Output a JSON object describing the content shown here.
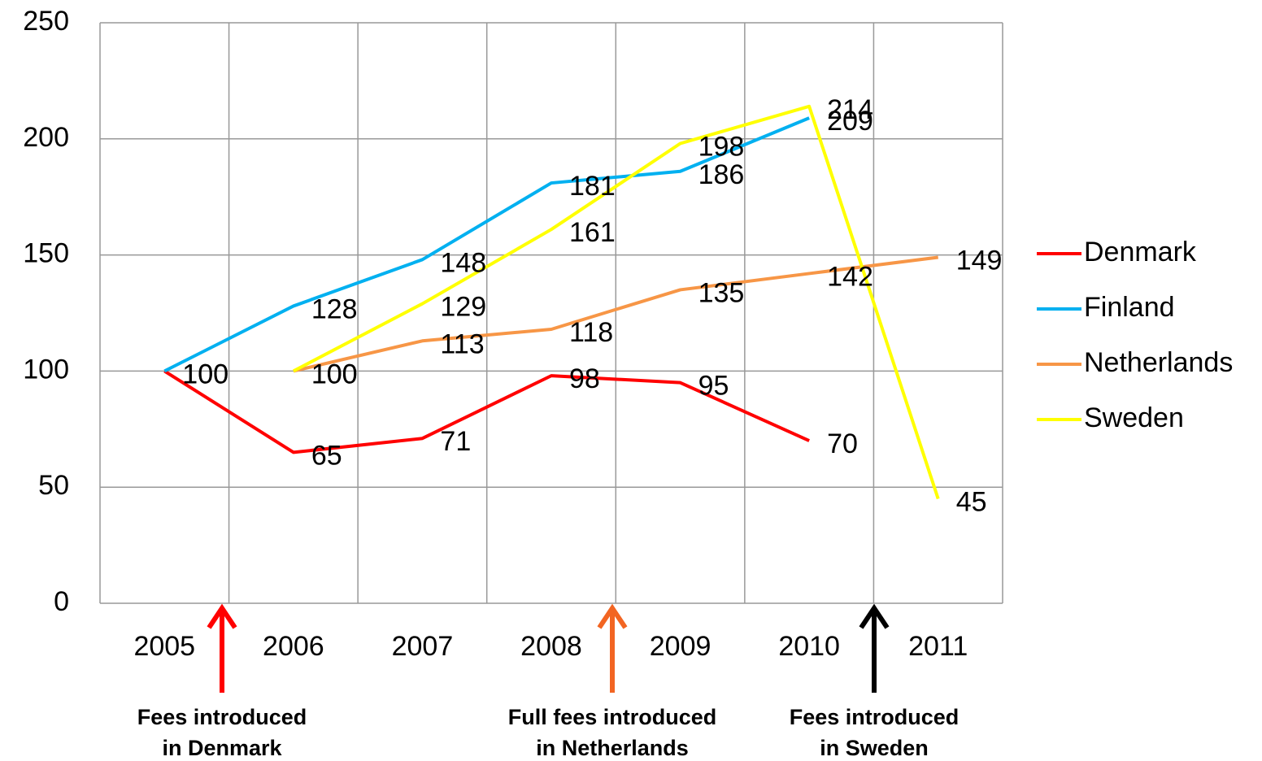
{
  "chart_data": {
    "type": "line",
    "categories": [
      "2005",
      "2006",
      "2007",
      "2008",
      "2009",
      "2010",
      "2011"
    ],
    "series": [
      {
        "name": "Denmark",
        "color": "#ff0000",
        "values": [
          100,
          65,
          71,
          98,
          95,
          70,
          null
        ]
      },
      {
        "name": "Finland",
        "color": "#00b0f0",
        "values": [
          100,
          128,
          148,
          181,
          186,
          209,
          null
        ]
      },
      {
        "name": "Netherlands",
        "color": "#f79646",
        "values": [
          null,
          100,
          113,
          118,
          135,
          142,
          149
        ]
      },
      {
        "name": "Sweden",
        "color": "#ffff00",
        "values": [
          null,
          100,
          129,
          161,
          198,
          214,
          45
        ]
      }
    ],
    "ylim": [
      0,
      250
    ],
    "yticks": [
      0,
      50,
      100,
      150,
      200,
      250
    ],
    "grid": true,
    "legend": "right",
    "annotations": [
      {
        "lines": [
          "Fees introduced",
          "in Denmark"
        ],
        "color": "#ff0000"
      },
      {
        "lines": [
          "Full fees introduced",
          "in Netherlands"
        ],
        "color": "#f26522"
      },
      {
        "lines": [
          "Fees introduced",
          "in Sweden"
        ],
        "color": "#000000"
      }
    ]
  }
}
